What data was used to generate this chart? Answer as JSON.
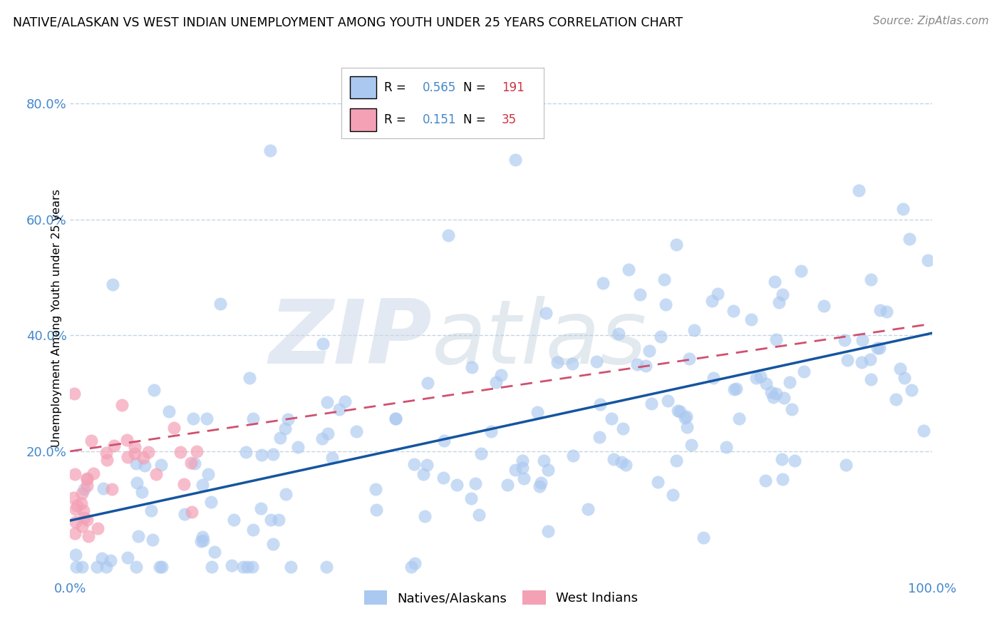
{
  "title": "NATIVE/ALASKAN VS WEST INDIAN UNEMPLOYMENT AMONG YOUTH UNDER 25 YEARS CORRELATION CHART",
  "source": "Source: ZipAtlas.com",
  "ylabel": "Unemployment Among Youth under 25 years",
  "series1_label": "Natives/Alaskans",
  "series2_label": "West Indians",
  "series1_R": 0.565,
  "series1_N": 191,
  "series2_R": 0.151,
  "series2_N": 35,
  "series1_color": "#aac8f0",
  "series2_color": "#f4a0b5",
  "line1_color": "#1555a0",
  "line2_color": "#d05070",
  "background_color": "#ffffff",
  "grid_color": "#c0d0e0",
  "watermark_zip": "ZIP",
  "watermark_atlas": "atlas",
  "title_fontsize": 12.5,
  "source_fontsize": 11,
  "axis_tick_color": "#4488cc",
  "seed": 99,
  "xlim": [
    0.0,
    1.0
  ],
  "ylim": [
    -0.02,
    0.88
  ],
  "legend_R_color": "#4488cc",
  "legend_N_color": "#cc3344"
}
